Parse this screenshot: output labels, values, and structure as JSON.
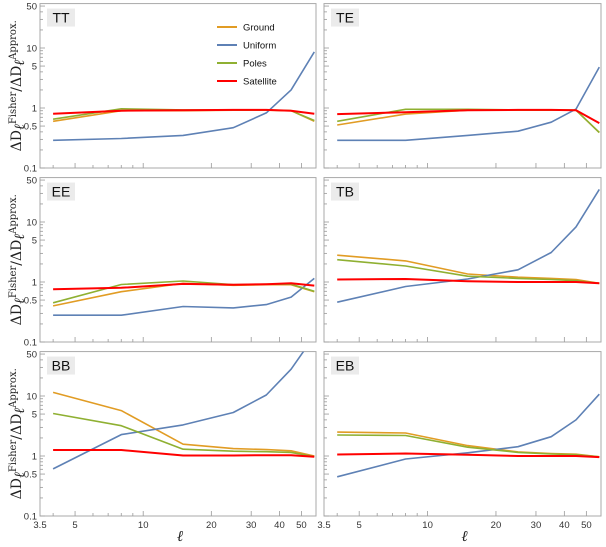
{
  "colors": {
    "Ground": "#e19c24",
    "Uniform": "#5e81b5",
    "Poles": "#8fb032",
    "Satellite": "#ff0000",
    "frame": "#aaaaaa",
    "label_bg": "#ebebeb"
  },
  "chart_data": {
    "type": "line",
    "xscale": "log",
    "yscale": "log",
    "xlabel": "ℓ",
    "ylabel": {
      "delta": "ΔD",
      "sub": "ℓ",
      "sup_num": "Fisher",
      "slash": "/",
      "sup_den": "Approx."
    },
    "xlim": [
      3.5,
      58
    ],
    "ylim": [
      0.1,
      55
    ],
    "xticks": [
      {
        "v": 3.5,
        "label": "3.5"
      },
      {
        "v": 5,
        "label": "5"
      },
      {
        "v": 10,
        "label": "10"
      },
      {
        "v": 20,
        "label": "20"
      },
      {
        "v": 30,
        "label": "30"
      },
      {
        "v": 40,
        "label": "40"
      },
      {
        "v": 50,
        "label": "50"
      }
    ],
    "yticks": [
      {
        "v": 0.1,
        "label": "0.1"
      },
      {
        "v": 0.5,
        "label": "0.5"
      },
      {
        "v": 1,
        "label": "1"
      },
      {
        "v": 5,
        "label": "5"
      },
      {
        "v": 10,
        "label": "10"
      },
      {
        "v": 50,
        "label": "50"
      }
    ],
    "legend": {
      "placement": "top-center of TT panel",
      "entries": [
        "Ground",
        "Uniform",
        "Poles",
        "Satellite"
      ]
    },
    "x": [
      4,
      8,
      15,
      25,
      35,
      45,
      57
    ],
    "panels": [
      {
        "title": "TT",
        "series": [
          {
            "name": "Ground",
            "values": [
              0.6,
              0.9,
              0.9,
              0.92,
              0.92,
              0.9,
              0.6
            ]
          },
          {
            "name": "Uniform",
            "values": [
              0.29,
              0.31,
              0.35,
              0.47,
              0.83,
              2.0,
              8.6
            ]
          },
          {
            "name": "Poles",
            "values": [
              0.65,
              0.97,
              0.93,
              0.93,
              0.93,
              0.9,
              0.62
            ]
          },
          {
            "name": "Satellite",
            "values": [
              0.8,
              0.9,
              0.92,
              0.93,
              0.93,
              0.9,
              0.8
            ]
          }
        ]
      },
      {
        "title": "TE",
        "series": [
          {
            "name": "Ground",
            "values": [
              0.52,
              0.79,
              0.92,
              0.92,
              0.92,
              0.92,
              0.39
            ]
          },
          {
            "name": "Uniform",
            "values": [
              0.29,
              0.29,
              0.35,
              0.41,
              0.58,
              0.96,
              4.8
            ]
          },
          {
            "name": "Poles",
            "values": [
              0.6,
              0.95,
              0.95,
              0.93,
              0.93,
              0.92,
              0.39
            ]
          },
          {
            "name": "Satellite",
            "values": [
              0.79,
              0.85,
              0.92,
              0.93,
              0.93,
              0.92,
              0.56
            ]
          }
        ]
      },
      {
        "title": "EE",
        "series": [
          {
            "name": "Ground",
            "values": [
              0.4,
              0.69,
              0.95,
              0.88,
              0.9,
              0.9,
              0.69
            ]
          },
          {
            "name": "Uniform",
            "values": [
              0.28,
              0.28,
              0.39,
              0.37,
              0.42,
              0.56,
              1.15
            ]
          },
          {
            "name": "Poles",
            "values": [
              0.45,
              0.91,
              1.04,
              0.9,
              0.92,
              0.92,
              0.7
            ]
          },
          {
            "name": "Satellite",
            "values": [
              0.76,
              0.8,
              0.93,
              0.9,
              0.92,
              0.95,
              0.87
            ]
          }
        ]
      },
      {
        "title": "TB",
        "series": [
          {
            "name": "Ground",
            "values": [
              2.8,
              2.25,
              1.36,
              1.2,
              1.15,
              1.1,
              0.95
            ]
          },
          {
            "name": "Uniform",
            "values": [
              0.46,
              0.84,
              1.12,
              1.6,
              3.1,
              8.3,
              35
            ]
          },
          {
            "name": "Poles",
            "values": [
              2.35,
              1.85,
              1.25,
              1.15,
              1.1,
              1.05,
              0.95
            ]
          },
          {
            "name": "Satellite",
            "values": [
              1.1,
              1.12,
              1.03,
              1.0,
              1.0,
              1.0,
              0.95
            ]
          }
        ]
      },
      {
        "title": "BB",
        "series": [
          {
            "name": "Ground",
            "values": [
              11.5,
              5.7,
              1.57,
              1.33,
              1.28,
              1.22,
              1.0
            ]
          },
          {
            "name": "Uniform",
            "values": [
              0.61,
              2.27,
              3.3,
              5.3,
              10.4,
              28,
              100
            ]
          },
          {
            "name": "Poles",
            "values": [
              5.1,
              3.2,
              1.3,
              1.2,
              1.18,
              1.15,
              0.98
            ]
          },
          {
            "name": "Satellite",
            "values": [
              1.26,
              1.26,
              1.02,
              1.02,
              1.03,
              1.03,
              0.97
            ]
          }
        ]
      },
      {
        "title": "EB",
        "series": [
          {
            "name": "Ground",
            "values": [
              2.5,
              2.42,
              1.49,
              1.17,
              1.1,
              1.07,
              0.97
            ]
          },
          {
            "name": "Uniform",
            "values": [
              0.45,
              0.89,
              1.13,
              1.43,
              2.1,
              4.0,
              10.7
            ]
          },
          {
            "name": "Poles",
            "values": [
              2.24,
              2.2,
              1.4,
              1.15,
              1.08,
              1.05,
              0.97
            ]
          },
          {
            "name": "Satellite",
            "values": [
              1.06,
              1.1,
              1.05,
              1.0,
              1.0,
              1.0,
              0.96
            ]
          }
        ]
      }
    ]
  }
}
